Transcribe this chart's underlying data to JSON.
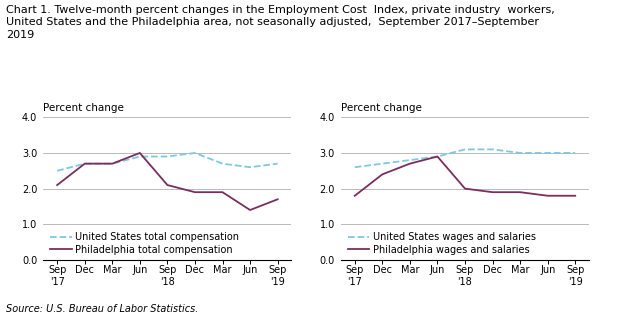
{
  "title_line1": "Chart 1. Twelve-month percent changes in the Employment Cost  Index, private industry  workers,",
  "title_line2": "United States and the Philadelphia area, not seasonally adjusted,  September 2017–September",
  "title_line3": "2019",
  "source": "Source: U.S. Bureau of Labor Statistics.",
  "ylabel": "Percent change",
  "x_labels": [
    "Sep\n'17",
    "Dec",
    "Mar",
    "Jun",
    "Sep\n'18",
    "Dec",
    "Mar",
    "Jun",
    "Sep\n'19"
  ],
  "x_positions": [
    0,
    1,
    2,
    3,
    4,
    5,
    6,
    7,
    8
  ],
  "chart1": {
    "us_total": [
      2.5,
      2.7,
      2.7,
      2.9,
      2.9,
      3.0,
      2.7,
      2.6,
      2.7
    ],
    "philly_total": [
      2.1,
      2.7,
      2.7,
      3.0,
      2.1,
      1.9,
      1.9,
      1.4,
      1.7
    ],
    "legend1": "United States total compensation",
    "legend2": "Philadelphia total compensation"
  },
  "chart2": {
    "us_wages": [
      2.6,
      2.7,
      2.8,
      2.9,
      3.1,
      3.1,
      3.0,
      3.0,
      3.0
    ],
    "philly_wages": [
      1.8,
      2.4,
      2.7,
      2.9,
      2.0,
      1.9,
      1.9,
      1.8,
      1.8
    ],
    "legend1": "United States wages and salaries",
    "legend2": "Philadelphia wages and salaries"
  },
  "us_color": "#7EC8E3",
  "philly_color": "#7B2D5E",
  "ylim": [
    0.0,
    4.0
  ],
  "yticks": [
    0.0,
    1.0,
    2.0,
    3.0,
    4.0
  ],
  "grid_color": "#b0b0b0",
  "title_fontsize": 8.0,
  "axis_label_fontsize": 7.5,
  "tick_fontsize": 7.0,
  "legend_fontsize": 7.0,
  "source_fontsize": 7.0
}
